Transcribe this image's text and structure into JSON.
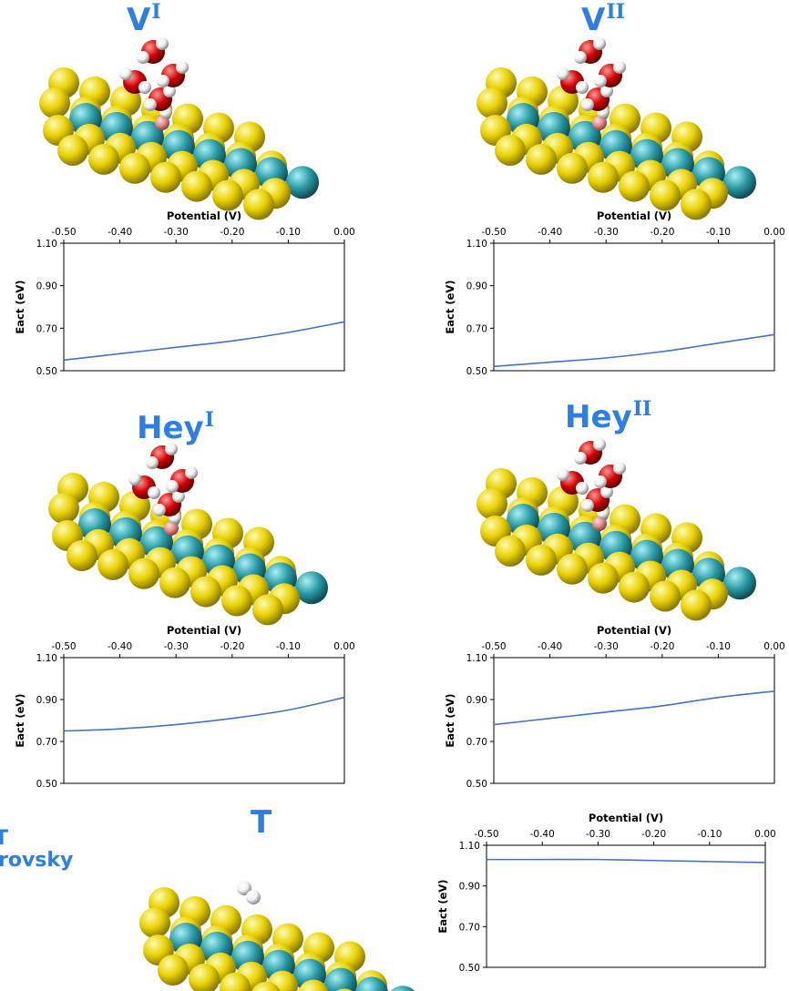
{
  "panels": [
    {
      "title_main": "V",
      "title_sup": "I",
      "model": "vertical"
    },
    {
      "title_main": "V",
      "title_sup": "II",
      "model": "vertical"
    },
    {
      "title_main": "Hey",
      "title_sup": "I",
      "model": "vertical"
    },
    {
      "title_main": "Hey",
      "title_sup": "II",
      "model": "vertical"
    },
    {
      "title_main": "T",
      "title_sup": "",
      "model": "tafel"
    }
  ],
  "side_labels": [
    "T",
    "rovsky"
  ],
  "colors": {
    "title": "#2f7fe0",
    "line": "#4472c4",
    "gold": "#e8d000",
    "teal": "#2a9aa5",
    "oxygen": "#d40000",
    "hydrogen": "#f2f2f2",
    "pink": "#e58a8a"
  },
  "chart_data": [
    {
      "type": "line",
      "xlabel": "Potential (V)",
      "ylabel": "Eact (eV)",
      "xlim": [
        -0.5,
        0.0
      ],
      "ylim": [
        0.5,
        1.1
      ],
      "xticks": [
        "-0.50",
        "-0.40",
        "-0.30",
        "-0.20",
        "-0.10",
        "0.00"
      ],
      "yticks": [
        "0.50",
        "0.70",
        "0.90",
        "1.10"
      ],
      "series": [
        {
          "x": [
            -0.5,
            -0.4,
            -0.3,
            -0.2,
            -0.1,
            0.0
          ],
          "values": [
            0.55,
            0.58,
            0.61,
            0.64,
            0.68,
            0.73
          ]
        }
      ]
    },
    {
      "type": "line",
      "xlabel": "Potential (V)",
      "ylabel": "Eact (eV)",
      "xlim": [
        -0.5,
        0.0
      ],
      "ylim": [
        0.5,
        1.1
      ],
      "xticks": [
        "-0.50",
        "-0.40",
        "-0.30",
        "-0.20",
        "-0.10",
        "0.00"
      ],
      "yticks": [
        "0.50",
        "0.70",
        "0.90",
        "1.10"
      ],
      "series": [
        {
          "x": [
            -0.5,
            -0.4,
            -0.3,
            -0.2,
            -0.1,
            0.0
          ],
          "values": [
            0.52,
            0.54,
            0.56,
            0.59,
            0.63,
            0.67
          ]
        }
      ]
    },
    {
      "type": "line",
      "xlabel": "Potential (V)",
      "ylabel": "Eact (eV)",
      "xlim": [
        -0.5,
        0.0
      ],
      "ylim": [
        0.5,
        1.1
      ],
      "xticks": [
        "-0.50",
        "-0.40",
        "-0.30",
        "-0.20",
        "-0.10",
        "0.00"
      ],
      "yticks": [
        "0.50",
        "0.70",
        "0.90",
        "1.10"
      ],
      "series": [
        {
          "x": [
            -0.5,
            -0.4,
            -0.3,
            -0.2,
            -0.1,
            0.0
          ],
          "values": [
            0.75,
            0.76,
            0.78,
            0.81,
            0.85,
            0.91
          ]
        }
      ]
    },
    {
      "type": "line",
      "xlabel": "Potential (V)",
      "ylabel": "Eact (eV)",
      "xlim": [
        -0.5,
        0.0
      ],
      "ylim": [
        0.5,
        1.1
      ],
      "xticks": [
        "-0.50",
        "-0.40",
        "-0.30",
        "-0.20",
        "-0.10",
        "0.00"
      ],
      "yticks": [
        "0.50",
        "0.70",
        "0.90",
        "1.10"
      ],
      "series": [
        {
          "x": [
            -0.5,
            -0.4,
            -0.3,
            -0.2,
            -0.1,
            0.0
          ],
          "values": [
            0.78,
            0.81,
            0.84,
            0.87,
            0.91,
            0.94
          ]
        }
      ]
    },
    {
      "type": "line",
      "xlabel": "Potential (V)",
      "ylabel": "Eact (eV)",
      "xlim": [
        -0.5,
        0.0
      ],
      "ylim": [
        0.5,
        1.1
      ],
      "xticks": [
        "-0.50",
        "-0.40",
        "-0.30",
        "-0.20",
        "-0.10",
        "0.00"
      ],
      "yticks": [
        "0.50",
        "0.70",
        "0.90",
        "1.10"
      ],
      "series": [
        {
          "x": [
            -0.5,
            -0.4,
            -0.3,
            -0.2,
            -0.1,
            0.0
          ],
          "values": [
            1.03,
            1.03,
            1.03,
            1.025,
            1.02,
            1.015
          ]
        }
      ]
    }
  ]
}
